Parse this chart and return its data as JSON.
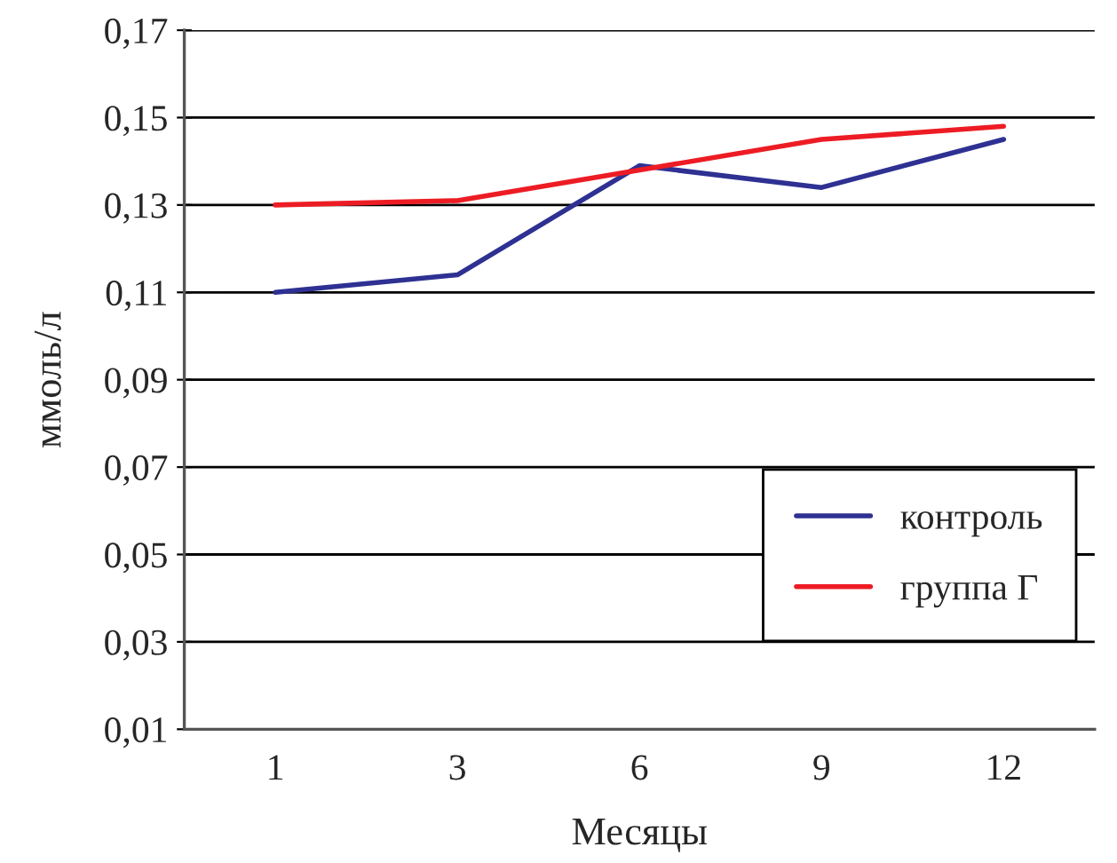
{
  "chart_data": {
    "type": "line",
    "xlabel": "Месяцы",
    "ylabel": "ммоль/л",
    "categories": [
      "1",
      "3",
      "6",
      "9",
      "12"
    ],
    "series": [
      {
        "name": "контроль",
        "color": "#2e3192",
        "values": [
          0.11,
          0.114,
          0.139,
          0.134,
          0.145
        ]
      },
      {
        "name": "группа Г",
        "color": "#ed1c24",
        "values": [
          0.13,
          0.131,
          0.138,
          0.145,
          0.148
        ]
      }
    ],
    "ylim": [
      0.01,
      0.17
    ],
    "yticks": [
      {
        "value": 0.01,
        "label": "0,01"
      },
      {
        "value": 0.03,
        "label": "0,03"
      },
      {
        "value": 0.05,
        "label": "0,05"
      },
      {
        "value": 0.07,
        "label": "0,07"
      },
      {
        "value": 0.09,
        "label": "0,09"
      },
      {
        "value": 0.11,
        "label": "0,11"
      },
      {
        "value": 0.13,
        "label": "0,13"
      },
      {
        "value": 0.15,
        "label": "0,15"
      },
      {
        "value": 0.17,
        "label": "0,17"
      }
    ],
    "grid": "y",
    "legend": "bottom right",
    "marker": "none",
    "line_style": "solid"
  }
}
